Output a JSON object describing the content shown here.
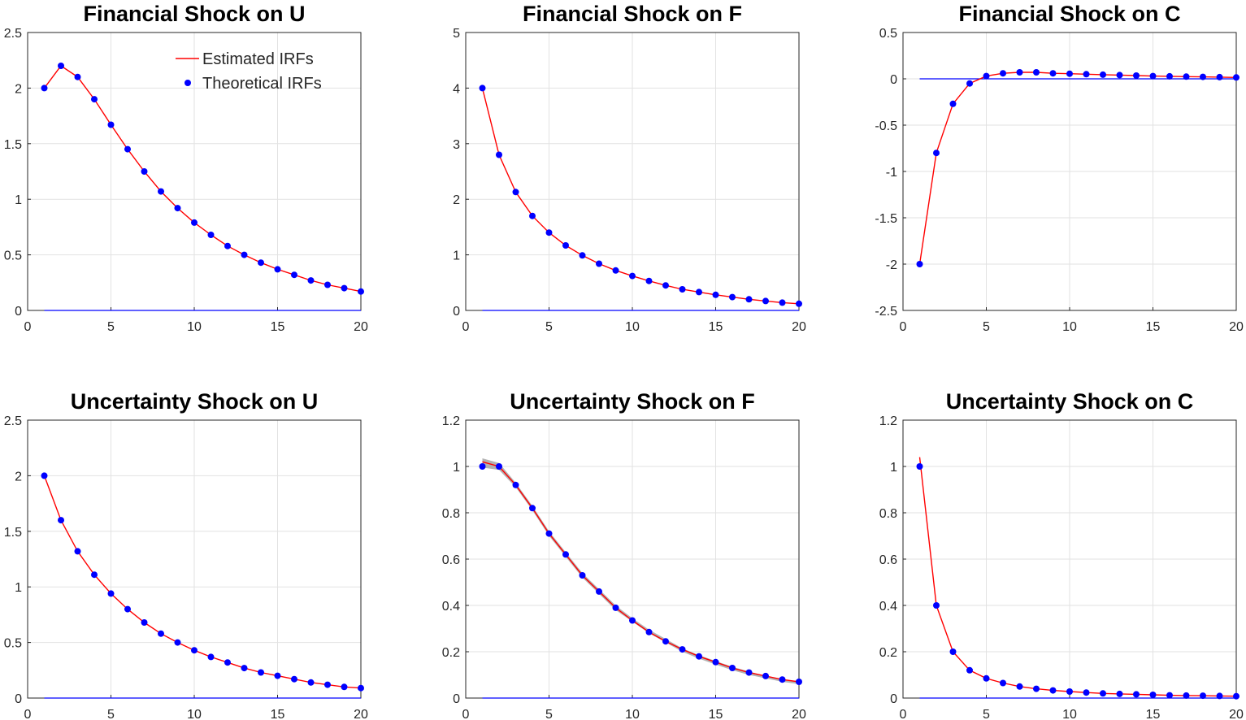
{
  "colors": {
    "estimated": "#ff0000",
    "theoretical": "#0000ff",
    "zero_line": "#0000ff",
    "band": "#999999",
    "grid": "#e2e2e2",
    "axes": "#262626"
  },
  "legend": {
    "estimated_label": "Estimated IRFs",
    "theoretical_label": "Theoretical IRFs",
    "placement": "top-right of first panel"
  },
  "chart_data": [
    {
      "type": "line",
      "title": "Financial Shock on U",
      "xlim": [
        0,
        20
      ],
      "ylim": [
        0,
        2.5
      ],
      "xticks": [
        0,
        5,
        10,
        15,
        20
      ],
      "xtick_labels": [
        "0",
        "5",
        "10",
        "15",
        "20"
      ],
      "yticks": [
        0,
        0.5,
        1,
        1.5,
        2,
        2.5
      ],
      "ytick_labels": [
        "0",
        "0.5",
        "1",
        "1.5",
        "2",
        "2.5"
      ],
      "grid": true,
      "x": [
        1,
        2,
        3,
        4,
        5,
        6,
        7,
        8,
        9,
        10,
        11,
        12,
        13,
        14,
        15,
        16,
        17,
        18,
        19,
        20
      ],
      "series": [
        {
          "name": "Estimated IRFs",
          "values": [
            2.0,
            2.2,
            2.1,
            1.9,
            1.67,
            1.45,
            1.25,
            1.07,
            0.92,
            0.79,
            0.68,
            0.58,
            0.5,
            0.43,
            0.37,
            0.32,
            0.27,
            0.23,
            0.2,
            0.17
          ]
        },
        {
          "name": "Theoretical IRFs",
          "values": [
            2.0,
            2.2,
            2.1,
            1.9,
            1.67,
            1.45,
            1.25,
            1.07,
            0.92,
            0.79,
            0.68,
            0.58,
            0.5,
            0.43,
            0.37,
            0.32,
            0.27,
            0.23,
            0.2,
            0.17
          ]
        }
      ]
    },
    {
      "type": "line",
      "title": "Financial Shock on F",
      "xlim": [
        0,
        20
      ],
      "ylim": [
        0,
        5
      ],
      "xticks": [
        0,
        5,
        10,
        15,
        20
      ],
      "xtick_labels": [
        "0",
        "5",
        "10",
        "15",
        "20"
      ],
      "yticks": [
        0,
        1,
        2,
        3,
        4,
        5
      ],
      "ytick_labels": [
        "0",
        "1",
        "2",
        "3",
        "4",
        "5"
      ],
      "grid": true,
      "x": [
        1,
        2,
        3,
        4,
        5,
        6,
        7,
        8,
        9,
        10,
        11,
        12,
        13,
        14,
        15,
        16,
        17,
        18,
        19,
        20
      ],
      "series": [
        {
          "name": "Estimated IRFs",
          "values": [
            4.0,
            2.8,
            2.13,
            1.7,
            1.4,
            1.17,
            0.99,
            0.84,
            0.72,
            0.62,
            0.53,
            0.45,
            0.38,
            0.33,
            0.28,
            0.24,
            0.2,
            0.17,
            0.14,
            0.12
          ]
        },
        {
          "name": "Theoretical IRFs",
          "values": [
            4.0,
            2.8,
            2.13,
            1.7,
            1.4,
            1.17,
            0.99,
            0.84,
            0.72,
            0.62,
            0.53,
            0.45,
            0.38,
            0.33,
            0.28,
            0.24,
            0.2,
            0.17,
            0.14,
            0.12
          ]
        }
      ]
    },
    {
      "type": "line",
      "title": "Financial Shock on C",
      "xlim": [
        0,
        20
      ],
      "ylim": [
        -2.5,
        0.5
      ],
      "xticks": [
        0,
        5,
        10,
        15,
        20
      ],
      "xtick_labels": [
        "0",
        "5",
        "10",
        "15",
        "20"
      ],
      "yticks": [
        -2.5,
        -2,
        -1.5,
        -1,
        -0.5,
        0,
        0.5
      ],
      "ytick_labels": [
        "-2.5",
        "-2",
        "-1.5",
        "-1",
        "-0.5",
        "0",
        "0.5"
      ],
      "grid": true,
      "x": [
        1,
        2,
        3,
        4,
        5,
        6,
        7,
        8,
        9,
        10,
        11,
        12,
        13,
        14,
        15,
        16,
        17,
        18,
        19,
        20
      ],
      "series": [
        {
          "name": "Estimated IRFs",
          "values": [
            -2.0,
            -0.8,
            -0.27,
            -0.05,
            0.03,
            0.06,
            0.07,
            0.07,
            0.06,
            0.055,
            0.05,
            0.045,
            0.04,
            0.035,
            0.03,
            0.027,
            0.024,
            0.021,
            0.018,
            0.015
          ]
        },
        {
          "name": "Theoretical IRFs",
          "values": [
            -2.0,
            -0.8,
            -0.27,
            -0.05,
            0.03,
            0.06,
            0.07,
            0.07,
            0.06,
            0.055,
            0.05,
            0.045,
            0.04,
            0.035,
            0.03,
            0.027,
            0.024,
            0.021,
            0.018,
            0.015
          ]
        }
      ]
    },
    {
      "type": "line",
      "title": "Uncertainty Shock on U",
      "xlim": [
        0,
        20
      ],
      "ylim": [
        0,
        2.5
      ],
      "xticks": [
        0,
        5,
        10,
        15,
        20
      ],
      "xtick_labels": [
        "0",
        "5",
        "10",
        "15",
        "20"
      ],
      "yticks": [
        0,
        0.5,
        1,
        1.5,
        2,
        2.5
      ],
      "ytick_labels": [
        "0",
        "0.5",
        "1",
        "1.5",
        "2",
        "2.5"
      ],
      "grid": true,
      "x": [
        1,
        2,
        3,
        4,
        5,
        6,
        7,
        8,
        9,
        10,
        11,
        12,
        13,
        14,
        15,
        16,
        17,
        18,
        19,
        20
      ],
      "series": [
        {
          "name": "Estimated IRFs",
          "values": [
            2.0,
            1.6,
            1.32,
            1.11,
            0.94,
            0.8,
            0.68,
            0.58,
            0.5,
            0.43,
            0.37,
            0.32,
            0.27,
            0.23,
            0.2,
            0.17,
            0.14,
            0.12,
            0.1,
            0.09
          ]
        },
        {
          "name": "Theoretical IRFs",
          "values": [
            2.0,
            1.6,
            1.32,
            1.11,
            0.94,
            0.8,
            0.68,
            0.58,
            0.5,
            0.43,
            0.37,
            0.32,
            0.27,
            0.23,
            0.2,
            0.17,
            0.14,
            0.12,
            0.1,
            0.09
          ]
        }
      ]
    },
    {
      "type": "line",
      "title": "Uncertainty Shock on F",
      "xlim": [
        0,
        20
      ],
      "ylim": [
        0,
        1.2
      ],
      "xticks": [
        0,
        5,
        10,
        15,
        20
      ],
      "xtick_labels": [
        "0",
        "5",
        "10",
        "15",
        "20"
      ],
      "yticks": [
        0,
        0.2,
        0.4,
        0.6,
        0.8,
        1,
        1.2
      ],
      "ytick_labels": [
        "0",
        "0.2",
        "0.4",
        "0.6",
        "0.8",
        "1",
        "1.2"
      ],
      "grid": true,
      "x": [
        1,
        2,
        3,
        4,
        5,
        6,
        7,
        8,
        9,
        10,
        11,
        12,
        13,
        14,
        15,
        16,
        17,
        18,
        19,
        20
      ],
      "band_lower": [
        0.995,
        0.985,
        0.91,
        0.81,
        0.7,
        0.61,
        0.52,
        0.45,
        0.38,
        0.33,
        0.28,
        0.24,
        0.2,
        0.17,
        0.145,
        0.12,
        0.1,
        0.085,
        0.07,
        0.06
      ],
      "band_upper": [
        1.035,
        1.015,
        0.93,
        0.83,
        0.72,
        0.63,
        0.54,
        0.47,
        0.4,
        0.345,
        0.295,
        0.255,
        0.215,
        0.185,
        0.16,
        0.135,
        0.115,
        0.095,
        0.08,
        0.07
      ],
      "series": [
        {
          "name": "Estimated IRFs",
          "values": [
            1.02,
            1.0,
            0.92,
            0.82,
            0.71,
            0.62,
            0.53,
            0.46,
            0.39,
            0.335,
            0.285,
            0.245,
            0.21,
            0.18,
            0.155,
            0.13,
            0.11,
            0.095,
            0.08,
            0.07
          ]
        },
        {
          "name": "Theoretical IRFs",
          "values": [
            1.0,
            1.0,
            0.92,
            0.82,
            0.71,
            0.62,
            0.53,
            0.46,
            0.39,
            0.335,
            0.285,
            0.245,
            0.21,
            0.18,
            0.155,
            0.13,
            0.11,
            0.095,
            0.08,
            0.07
          ]
        }
      ]
    },
    {
      "type": "line",
      "title": "Uncertainty Shock on C",
      "xlim": [
        0,
        20
      ],
      "ylim": [
        0,
        1.2
      ],
      "xticks": [
        0,
        5,
        10,
        15,
        20
      ],
      "xtick_labels": [
        "0",
        "5",
        "10",
        "15",
        "20"
      ],
      "yticks": [
        0,
        0.2,
        0.4,
        0.6,
        0.8,
        1,
        1.2
      ],
      "ytick_labels": [
        "0",
        "0.2",
        "0.4",
        "0.6",
        "0.8",
        "1",
        "1.2"
      ],
      "grid": true,
      "x": [
        1,
        2,
        3,
        4,
        5,
        6,
        7,
        8,
        9,
        10,
        11,
        12,
        13,
        14,
        15,
        16,
        17,
        18,
        19,
        20
      ],
      "series": [
        {
          "name": "Estimated IRFs",
          "values": [
            1.04,
            0.4,
            0.2,
            0.12,
            0.085,
            0.065,
            0.05,
            0.04,
            0.033,
            0.028,
            0.024,
            0.02,
            0.018,
            0.016,
            0.014,
            0.012,
            0.011,
            0.01,
            0.009,
            0.008
          ]
        },
        {
          "name": "Theoretical IRFs",
          "values": [
            1.0,
            0.4,
            0.2,
            0.12,
            0.085,
            0.065,
            0.05,
            0.04,
            0.033,
            0.028,
            0.024,
            0.02,
            0.018,
            0.016,
            0.014,
            0.012,
            0.011,
            0.01,
            0.009,
            0.008
          ]
        }
      ]
    }
  ]
}
